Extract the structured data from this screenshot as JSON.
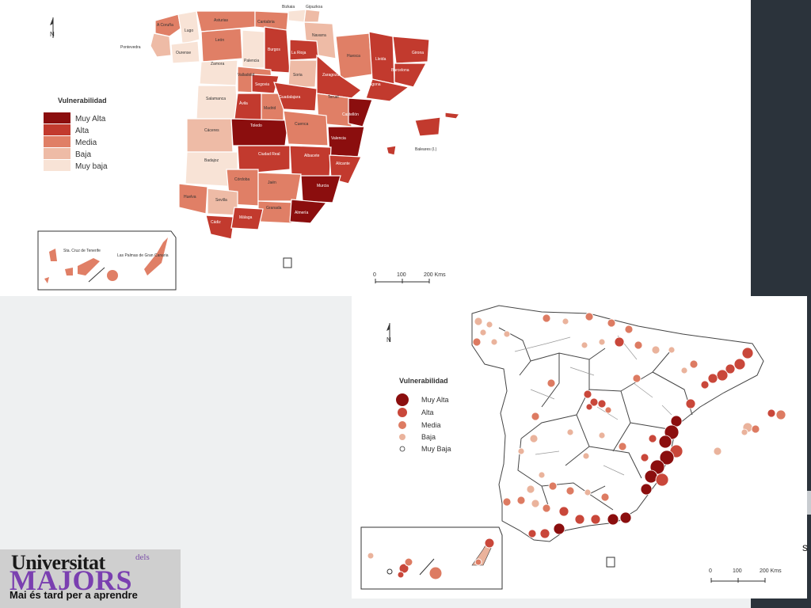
{
  "map1": {
    "legend_title": "Vulnerabilidad",
    "legend": [
      {
        "label": "Muy Alta",
        "color": "#8b0e0e"
      },
      {
        "label": "Alta",
        "color": "#c23a2e"
      },
      {
        "label": "Media",
        "color": "#e07f66"
      },
      {
        "label": "Baja",
        "color": "#eebba6"
      },
      {
        "label": "Muy baja",
        "color": "#f8e3d6"
      }
    ],
    "provinces": [
      "A Coruña",
      "Lugo",
      "Asturias",
      "Cantabria",
      "Bizkaia",
      "Gipuzkoa",
      "Navarra",
      "Pontevedra",
      "Ourense",
      "León",
      "Burgos",
      "La Rioja",
      "Huesca",
      "Lleida",
      "Girona",
      "Zamora",
      "Palencia",
      "Soria",
      "Zaragoza",
      "Barcelona",
      "Valladolid",
      "Segovia",
      "Tarragona",
      "Salamanca",
      "Ávila",
      "Madrid",
      "Guadalajara",
      "Teruel",
      "Castellón",
      "Cáceres",
      "Toledo",
      "Cuenca",
      "Valencia",
      "Baleares (I.)",
      "Badajoz",
      "Ciudad Real",
      "Albacete",
      "Alicante",
      "Córdoba",
      "Jaén",
      "Murcia",
      "Huelva",
      "Sevilla",
      "Granada",
      "Almería",
      "Cádiz",
      "Málaga",
      "Sta. Cruz de Tenerife",
      "Las Palmas de Gran Canaria"
    ],
    "scale": {
      "ticks": [
        "0",
        "100",
        "200 Kms"
      ]
    },
    "north": "N"
  },
  "map2": {
    "legend_title": "Vulnerabilidad",
    "legend": [
      {
        "label": "Muy Alta",
        "color": "#8b0e0e"
      },
      {
        "label": "Alta",
        "color": "#c9473a"
      },
      {
        "label": "Media",
        "color": "#dd7b62"
      },
      {
        "label": "Baja",
        "color": "#eab39c"
      },
      {
        "label": "Muy Baja",
        "color": "#ffffff"
      }
    ],
    "scale": {
      "ticks": [
        "0",
        "100",
        "200 Kms"
      ]
    },
    "north": "N"
  },
  "logo": {
    "line1": "Universitat",
    "line1_small": "dels",
    "line2": "MAJORS",
    "line3": "Mai és tard per a aprendre"
  },
  "edge_text": "s"
}
